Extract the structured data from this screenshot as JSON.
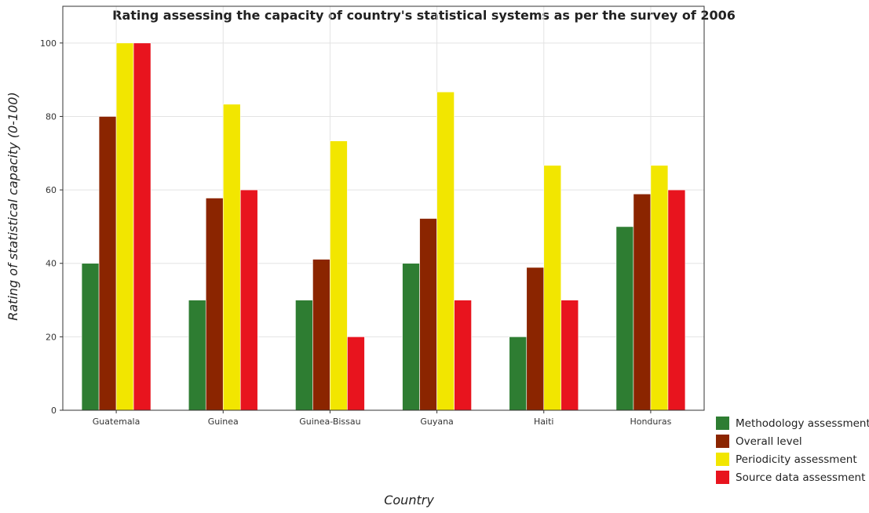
{
  "chart_data": {
    "type": "bar",
    "title": "Rating assessing the capacity of country's statistical systems as per the survey of 2006",
    "xlabel": "Country",
    "ylabel": "Rating of statistical capacity (0-100)",
    "categories": [
      "Guatemala",
      "Guinea",
      "Guinea-Bissau",
      "Guyana",
      "Haiti",
      "Honduras"
    ],
    "ylim": [
      0,
      110
    ],
    "yticks": [
      "0",
      "20",
      "40",
      "60",
      "80",
      "100"
    ],
    "grid": true,
    "legend_position": "bottom-right",
    "series": [
      {
        "name": "Methodology assessment",
        "color": "#2e7d32",
        "values": [
          40,
          30,
          30,
          40,
          20,
          50
        ]
      },
      {
        "name": "Overall level",
        "color": "#8b2500",
        "values": [
          80,
          57.78,
          41.11,
          52.22,
          38.89,
          58.89
        ]
      },
      {
        "name": "Periodicity assessment",
        "color": "#f2e600",
        "values": [
          100,
          83.33,
          73.33,
          86.67,
          66.67,
          66.67
        ]
      },
      {
        "name": "Source data assessment",
        "color": "#e8141e",
        "values": [
          100,
          60,
          20,
          30,
          30,
          60
        ]
      }
    ]
  }
}
